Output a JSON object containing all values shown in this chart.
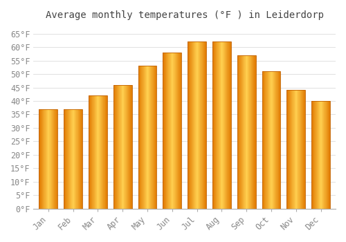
{
  "title": "Average monthly temperatures (°F ) in Leiderdorp",
  "months": [
    "Jan",
    "Feb",
    "Mar",
    "Apr",
    "May",
    "Jun",
    "Jul",
    "Aug",
    "Sep",
    "Oct",
    "Nov",
    "Dec"
  ],
  "values": [
    37,
    37,
    42,
    46,
    53,
    58,
    62,
    62,
    57,
    51,
    44,
    40
  ],
  "bar_color_center": "#FFD050",
  "bar_color_edge": "#E07800",
  "background_color": "#FFFFFF",
  "grid_color": "#E0E0E0",
  "ylim": [
    0,
    68
  ],
  "yticks": [
    0,
    5,
    10,
    15,
    20,
    25,
    30,
    35,
    40,
    45,
    50,
    55,
    60,
    65
  ],
  "title_fontsize": 10,
  "tick_fontsize": 8.5,
  "figsize": [
    5.0,
    3.5
  ],
  "dpi": 100,
  "bar_width": 0.75
}
